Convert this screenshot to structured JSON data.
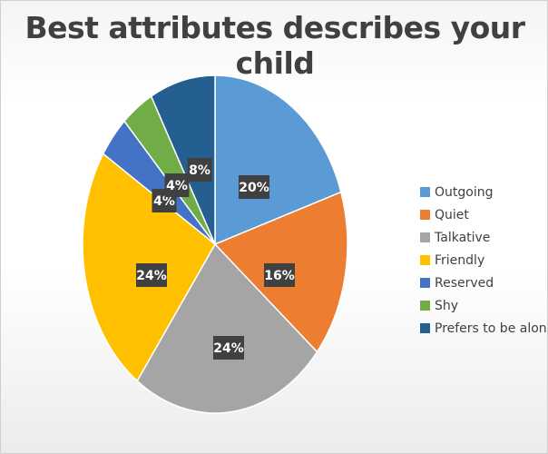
{
  "chart_data": {
    "type": "pie",
    "title": "Best attributes describes your child",
    "slices": [
      {
        "label": "Outgoing",
        "value": 20,
        "display": "20%",
        "color": "#5B9BD5"
      },
      {
        "label": "Quiet",
        "value": 16,
        "display": "16%",
        "color": "#ED7D31"
      },
      {
        "label": "Talkative",
        "value": 24,
        "display": "24%",
        "color": "#A5A5A5"
      },
      {
        "label": "Friendly",
        "value": 24,
        "display": "24%",
        "color": "#FFC000"
      },
      {
        "label": "Reserved",
        "value": 4,
        "display": "4%",
        "color": "#4472C4"
      },
      {
        "label": "Shy",
        "value": 4,
        "display": "4%",
        "color": "#70AD47"
      },
      {
        "label": "Prefers to be alone",
        "value": 8,
        "display": "8%",
        "color": "#255E91"
      }
    ],
    "legend": "right",
    "data_label_style": "dark-box"
  }
}
